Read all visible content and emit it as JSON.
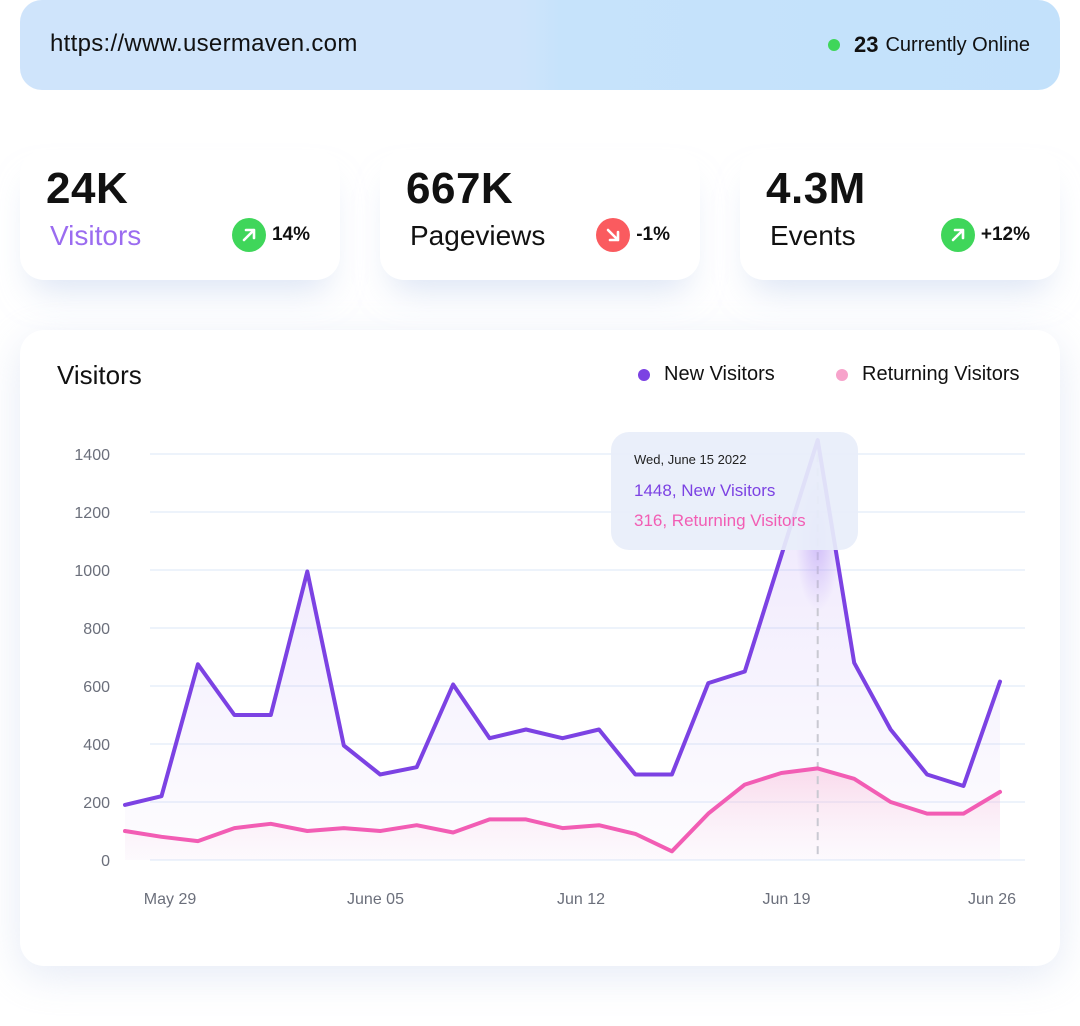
{
  "header": {
    "url": "https://www.usermaven.com",
    "online_count": "23",
    "online_label": "Currently Online"
  },
  "stats": [
    {
      "value": "24K",
      "label": "Visitors",
      "change": "14%",
      "trend": "up",
      "label_color": "#9b6cf0"
    },
    {
      "value": "667K",
      "label": "Pageviews",
      "change": "-1%",
      "trend": "down",
      "label_color": "#111111"
    },
    {
      "value": "4.3M",
      "label": "Events",
      "change": "+12%",
      "trend": "up",
      "label_color": "#111111"
    }
  ],
  "colors": {
    "positive": "#3fd65a",
    "negative": "#fa5b5f",
    "new_visitors": "#7c42e3",
    "returning_visitors": "#f25db4",
    "online_dot": "#3fd65a"
  },
  "chart_data": {
    "type": "area",
    "title": "Visitors",
    "legend_position": "top-right",
    "ylim": [
      0,
      1400
    ],
    "y_ticks": [
      0,
      200,
      400,
      600,
      800,
      1000,
      1200,
      1400
    ],
    "x_tick_labels": [
      "May 29",
      "June 05",
      "Jun 12",
      "Jun 19",
      "Jun 26"
    ],
    "grid": true,
    "series": [
      {
        "name": "New Visitors",
        "color": "#7c42e3",
        "values": [
          190,
          220,
          675,
          500,
          500,
          995,
          395,
          295,
          320,
          605,
          420,
          450,
          420,
          450,
          295,
          295,
          610,
          650,
          1050,
          1448,
          680,
          450,
          295,
          255,
          615
        ]
      },
      {
        "name": "Returning Visitors",
        "color": "#f25db4",
        "values": [
          100,
          80,
          65,
          110,
          125,
          100,
          110,
          100,
          120,
          95,
          140,
          140,
          110,
          120,
          90,
          30,
          160,
          260,
          300,
          316,
          280,
          200,
          160,
          160,
          235
        ]
      }
    ],
    "tooltip": {
      "date": "Wed, June 15 2022",
      "new_text": "1448, New Visitors",
      "returning_text": "316, Returning Visitors"
    }
  }
}
